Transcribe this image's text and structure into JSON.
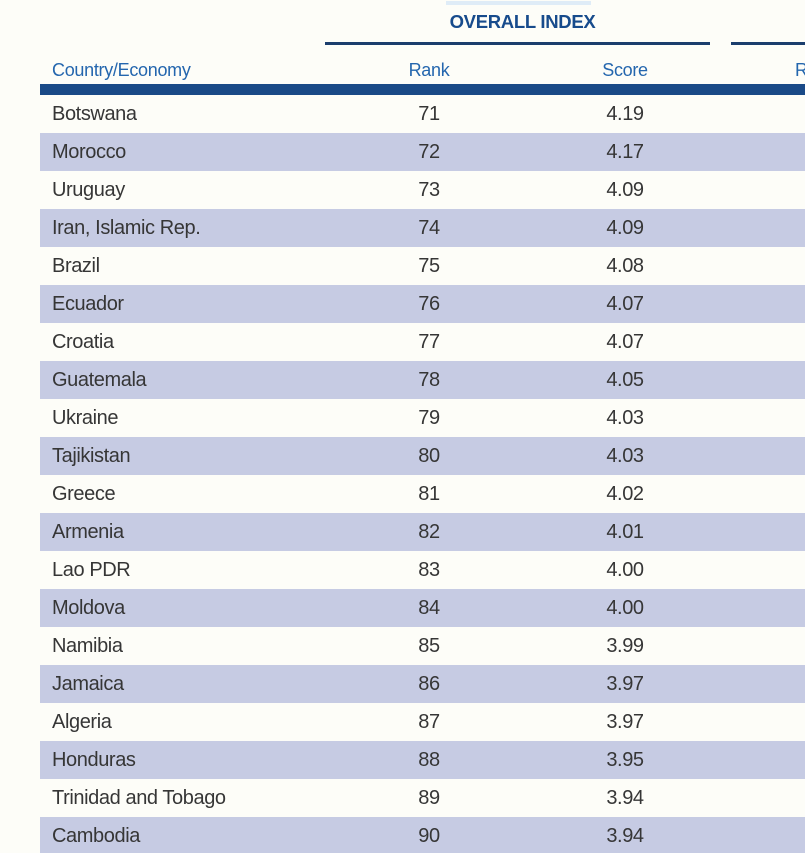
{
  "document": {
    "group_header": "OVERALL INDEX",
    "next_group_header_partial": "Rank",
    "columns": {
      "country": "Country/Economy",
      "rank": "Rank",
      "score": "Score"
    },
    "colors": {
      "page_background": "#fdfdf8",
      "stripe": "#c6cbe3",
      "header_bar_navy": "#1a4a87",
      "rule_navy": "#1b3e6d",
      "column_header_blue": "#2466ae",
      "group_title_blue": "#174b8c",
      "row_text": "#363636"
    },
    "rows": [
      {
        "country": "Botswana",
        "rank": "71",
        "score": "4.19"
      },
      {
        "country": "Morocco",
        "rank": "72",
        "score": "4.17"
      },
      {
        "country": "Uruguay",
        "rank": "73",
        "score": "4.09"
      },
      {
        "country": "Iran, Islamic Rep.",
        "rank": "74",
        "score": "4.09"
      },
      {
        "country": "Brazil",
        "rank": "75",
        "score": "4.08"
      },
      {
        "country": "Ecuador",
        "rank": "76",
        "score": "4.07"
      },
      {
        "country": "Croatia",
        "rank": "77",
        "score": "4.07"
      },
      {
        "country": "Guatemala",
        "rank": "78",
        "score": "4.05"
      },
      {
        "country": "Ukraine",
        "rank": "79",
        "score": "4.03"
      },
      {
        "country": "Tajikistan",
        "rank": "80",
        "score": "4.03"
      },
      {
        "country": "Greece",
        "rank": "81",
        "score": "4.02"
      },
      {
        "country": "Armenia",
        "rank": "82",
        "score": "4.01"
      },
      {
        "country": "Lao PDR",
        "rank": "83",
        "score": "4.00"
      },
      {
        "country": "Moldova",
        "rank": "84",
        "score": "4.00"
      },
      {
        "country": "Namibia",
        "rank": "85",
        "score": "3.99"
      },
      {
        "country": "Jamaica",
        "rank": "86",
        "score": "3.97"
      },
      {
        "country": "Algeria",
        "rank": "87",
        "score": "3.97"
      },
      {
        "country": "Honduras",
        "rank": "88",
        "score": "3.95"
      },
      {
        "country": "Trinidad and Tobago",
        "rank": "89",
        "score": "3.94"
      },
      {
        "country": "Cambodia",
        "rank": "90",
        "score": "3.94"
      }
    ]
  }
}
